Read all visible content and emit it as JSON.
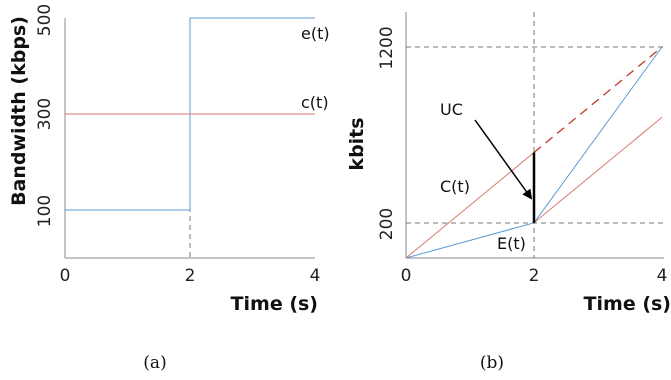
{
  "chart_data": [
    {
      "panel": "(a)",
      "type": "line",
      "xlabel": "Time (s)",
      "ylabel": "Bandwidth (kbps)",
      "xlim": [
        0,
        4
      ],
      "ylim": [
        0,
        500
      ],
      "x_ticks": [
        "0",
        "2",
        "4"
      ],
      "y_ticks": [
        "100",
        "300",
        "500"
      ],
      "series": [
        {
          "name": "e(t)",
          "color": "#5b9bd5",
          "points": [
            [
              0,
              100
            ],
            [
              2,
              100
            ],
            [
              2,
              500
            ],
            [
              4,
              500
            ]
          ]
        },
        {
          "name": "c(t)",
          "color": "#d9776f",
          "points": [
            [
              0,
              300
            ],
            [
              4,
              300
            ]
          ]
        }
      ],
      "reference_lines": [
        {
          "axis": "x",
          "value": 2,
          "style": "dashed"
        }
      ]
    },
    {
      "panel": "(b)",
      "type": "line",
      "xlabel": "Time (s)",
      "ylabel": "kbits",
      "xlim": [
        0,
        4
      ],
      "ylim": [
        0,
        1200
      ],
      "x_ticks": [
        "0",
        "2",
        "4"
      ],
      "y_ticks": [
        "200",
        "1200"
      ],
      "series": [
        {
          "name": "E(t)",
          "color": "#5b9bd5",
          "points": [
            [
              0,
              0
            ],
            [
              2,
              200
            ],
            [
              4,
              1200
            ]
          ]
        },
        {
          "name": "C(t)",
          "color": "#d9776f",
          "points": [
            [
              0,
              0
            ],
            [
              2,
              600
            ]
          ],
          "continuation": {
            "points": [
              [
                2,
                600
              ],
              [
                4,
                1200
              ]
            ],
            "style": "dashed",
            "color": "#c0392b"
          }
        },
        {
          "name": "",
          "color": "#d9776f",
          "points": [
            [
              2,
              200
            ],
            [
              4,
              800
            ]
          ]
        }
      ],
      "reference_lines": [
        {
          "axis": "x",
          "value": 2,
          "style": "dashed"
        },
        {
          "axis": "y",
          "value": 200,
          "style": "dashed"
        },
        {
          "axis": "y",
          "value": 1200,
          "style": "dashed"
        }
      ],
      "annotations": [
        {
          "text": "UC",
          "points_to": [
            2,
            400
          ]
        }
      ],
      "uc_segment": [
        [
          2,
          200
        ],
        [
          2,
          600
        ]
      ]
    }
  ],
  "captions": {
    "a": "(a)",
    "b": "(b)"
  }
}
